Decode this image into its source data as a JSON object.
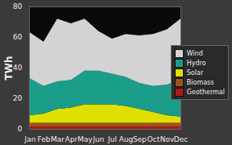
{
  "chart_data": {
    "type": "area",
    "stacked": true,
    "y_label": "TWh",
    "categories": [
      "Jan",
      "Feb",
      "Mar",
      "Apr",
      "May",
      "Jun",
      "Jul",
      "Aug",
      "Sep",
      "Oct",
      "Nov",
      "Dec"
    ],
    "series": [
      {
        "name": "Wind",
        "color": "#d3d3d3",
        "values": [
          30,
          29,
          41,
          37,
          34,
          26,
          23,
          28,
          31,
          34,
          36,
          40
        ]
      },
      {
        "name": "Hydro",
        "color": "#1a9e8a",
        "values": [
          24,
          18,
          18,
          18,
          22,
          22,
          20,
          19,
          17,
          17,
          20,
          24
        ]
      },
      {
        "name": "Solar",
        "color": "#e0e000",
        "values": [
          5,
          6,
          9,
          10,
          12,
          12,
          12,
          11,
          9,
          7,
          5,
          4
        ]
      },
      {
        "name": "Biomass",
        "color": "#a0521c",
        "values": [
          2.5,
          2.5,
          2.5,
          2.5,
          2.5,
          2.5,
          2.5,
          2.5,
          2.5,
          2.5,
          2.5,
          2.5
        ]
      },
      {
        "name": "Geothermal",
        "color": "#b01818",
        "values": [
          1.5,
          1.5,
          1.5,
          1.5,
          1.5,
          1.5,
          1.5,
          1.5,
          1.5,
          1.5,
          1.5,
          1.5
        ]
      }
    ],
    "ylim": [
      0,
      80
    ],
    "yticks": [
      0,
      20,
      40,
      60,
      80
    ],
    "grid": false,
    "legend": "right"
  }
}
